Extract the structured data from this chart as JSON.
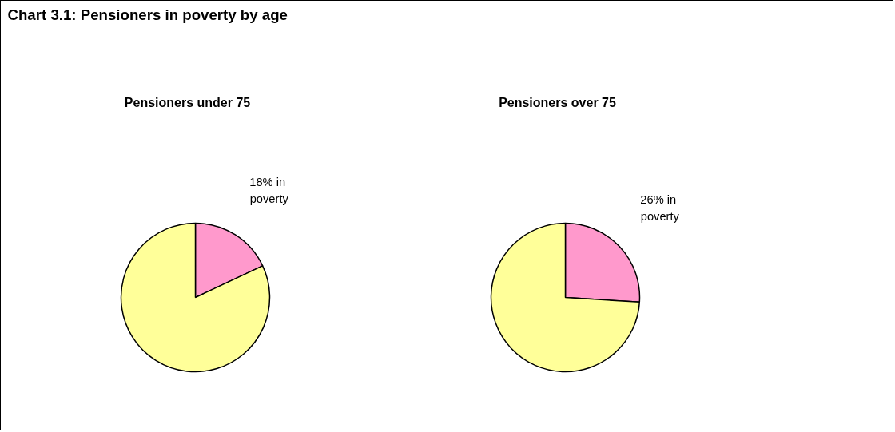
{
  "chart_data": [
    {
      "type": "other",
      "title": "Chart 3.1: Pensioners in poverty by age"
    },
    {
      "type": "pie",
      "title": "Pensioners under 75",
      "categories": [
        null,
        null
      ],
      "values": [
        18,
        82
      ],
      "colors": [
        "#ff99cc",
        "#ffff99"
      ],
      "value_labels": [
        "18%  in poverty",
        null
      ]
    },
    {
      "type": "pie",
      "title": "Pensioners over 75",
      "categories": [
        null,
        null
      ],
      "values": [
        26,
        74
      ],
      "colors": [
        "#ff99cc",
        "#ffff99"
      ],
      "value_labels": [
        "26%  in poverty",
        null
      ]
    }
  ]
}
